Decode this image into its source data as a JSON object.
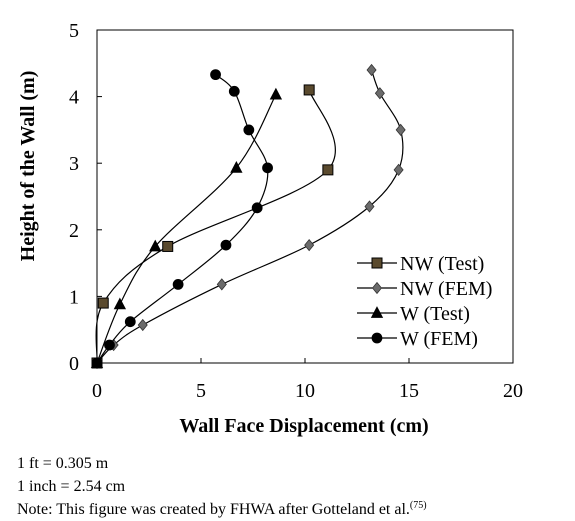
{
  "chart_data": {
    "type": "scatter",
    "xlabel": "Wall Face Displacement (cm)",
    "ylabel": "Height of the Wall (m)",
    "xlim": [
      0,
      20
    ],
    "ylim": [
      0,
      5
    ],
    "xticks": [
      0,
      5,
      10,
      15,
      20
    ],
    "yticks": [
      0,
      1,
      2,
      3,
      4,
      5
    ],
    "grid": false,
    "legend_position": "bottom-right",
    "series": [
      {
        "name": "NW (Test)",
        "marker": "square",
        "fill": "#5a4a2e",
        "x": [
          0.0,
          0.3,
          3.4,
          11.1,
          10.2
        ],
        "y": [
          0.0,
          0.9,
          1.75,
          2.9,
          4.1
        ]
      },
      {
        "name": "NW (FEM)",
        "marker": "diamond",
        "fill": "#6b6b6b",
        "x": [
          0.0,
          0.8,
          2.2,
          6.0,
          10.2,
          13.1,
          14.5,
          14.6,
          13.6,
          13.2
        ],
        "y": [
          0.0,
          0.27,
          0.57,
          1.18,
          1.77,
          2.35,
          2.9,
          3.5,
          4.05,
          4.4
        ]
      },
      {
        "name": "W (Test)",
        "marker": "triangle",
        "fill": "#000000",
        "x": [
          0.0,
          1.1,
          2.8,
          6.7,
          8.6
        ],
        "y": [
          0.0,
          0.88,
          1.75,
          2.93,
          4.03
        ]
      },
      {
        "name": "W (FEM)",
        "marker": "circle",
        "fill": "#000000",
        "x": [
          0.0,
          0.6,
          1.6,
          3.9,
          6.2,
          7.7,
          8.2,
          7.3,
          6.6,
          5.7
        ],
        "y": [
          0.0,
          0.27,
          0.62,
          1.18,
          1.77,
          2.33,
          2.93,
          3.5,
          4.08,
          4.33
        ]
      }
    ]
  },
  "notes": {
    "line1": "1 ft = 0.305 m",
    "line2": "1 inch = 2.54 cm",
    "line3_text": "Note: This figure was created by FHWA after Gotteland et al.",
    "line3_ref": "(75)"
  }
}
